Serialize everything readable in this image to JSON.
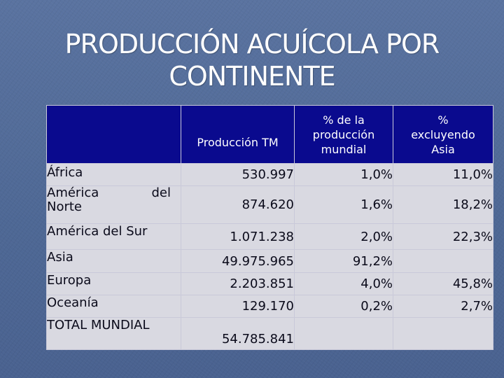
{
  "slide": {
    "title_line1": "PRODUCCIÓN ACUÍCOLA POR",
    "title_line2": "CONTINENTE"
  },
  "table": {
    "headers": {
      "col0": "",
      "col1": "Producción TM",
      "col2_line1": "% de la",
      "col2_line2": "producción",
      "col2_line3": "mundial",
      "col3_line1": "%",
      "col3_line2": "excluyendo",
      "col3_line3": "Asia"
    },
    "rows": [
      {
        "label": "África",
        "produccion": "530.997",
        "pct_mundial": "1,0%",
        "pct_excl_asia": "11,0%"
      },
      {
        "label_a": "América",
        "label_b": "del",
        "label_c": "Norte",
        "produccion": "874.620",
        "pct_mundial": "1,6%",
        "pct_excl_asia": "18,2%"
      },
      {
        "label": "América del Sur",
        "produccion": "1.071.238",
        "pct_mundial": "2,0%",
        "pct_excl_asia": "22,3%"
      },
      {
        "label": "Asia",
        "produccion": "49.975.965",
        "pct_mundial": "91,2%",
        "pct_excl_asia": ""
      },
      {
        "label": "Europa",
        "produccion": "2.203.851",
        "pct_mundial": "4,0%",
        "pct_excl_asia": "45,8%"
      },
      {
        "label": "Oceanía",
        "produccion": "129.170",
        "pct_mundial": "0,2%",
        "pct_excl_asia": "2,7%"
      },
      {
        "label": "TOTAL MUNDIAL",
        "produccion": "54.785.841",
        "pct_mundial": "",
        "pct_excl_asia": ""
      }
    ]
  }
}
